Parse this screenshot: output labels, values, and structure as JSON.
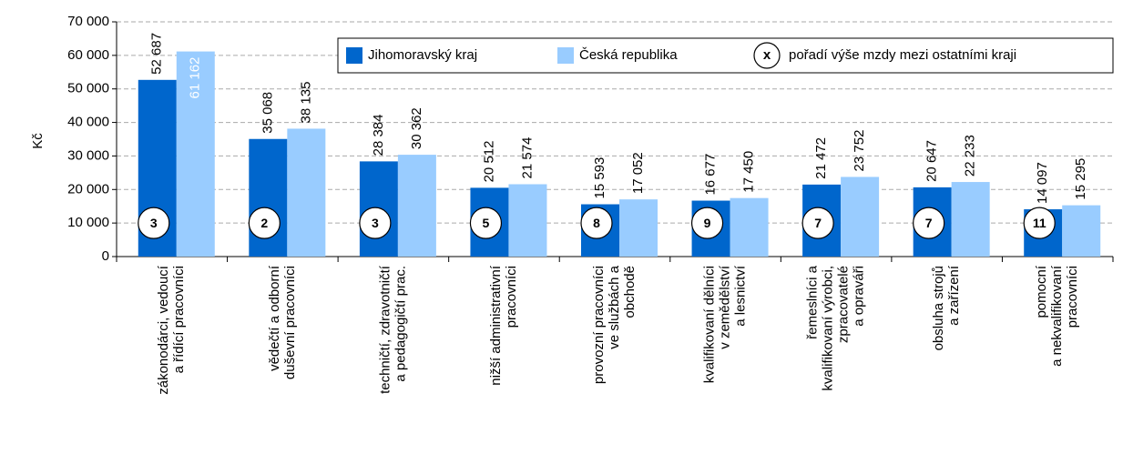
{
  "chart_data": {
    "type": "bar",
    "y_label": "Kč",
    "categories": [
      [
        "zákonodárci, vedoucí",
        "a řídící pracovníci"
      ],
      [
        "vědečtí a odborní",
        "duševní pracovníci"
      ],
      [
        "techničtí, zdravotničtí",
        "a pedagogičtí prac."
      ],
      [
        "nižší administrativní",
        "pracovníci"
      ],
      [
        "provozní pracovníci",
        "ve službách a",
        "obchodě"
      ],
      [
        "kvalifikovaní dělníci",
        "v zemědělství",
        "a lesnictví"
      ],
      [
        "řemeslníci a",
        "kvalifikovaní výrobci,",
        "zpracovatelé",
        "a opraváři"
      ],
      [
        "obsluha strojů",
        "a zařízení"
      ],
      [
        "pomocní",
        "a nekvalifikovaní",
        "pracovníci"
      ]
    ],
    "series": [
      {
        "name": "Jihomoravský kraj",
        "color": "#0066cc",
        "values": [
          52687,
          35068,
          28384,
          20512,
          15593,
          16677,
          21472,
          20647,
          14097
        ],
        "value_labels": [
          "52 687",
          "35 068",
          "28 384",
          "20 512",
          "15 593",
          "16 677",
          "21 472",
          "20 647",
          "14 097"
        ]
      },
      {
        "name": "Česká republika",
        "color": "#99ccff",
        "values": [
          61162,
          38135,
          30362,
          21574,
          17052,
          17450,
          23752,
          22233,
          15295
        ],
        "value_labels": [
          "61 162",
          "38 135",
          "30 362",
          "21 574",
          "17 052",
          "17 450",
          "23 752",
          "22 233",
          "15 295"
        ]
      }
    ],
    "ranks": [
      3,
      2,
      3,
      5,
      8,
      9,
      7,
      7,
      11
    ],
    "rank_legend": {
      "symbol": "x",
      "label": "pořadí výše mzdy mezi ostatními kraji"
    },
    "ylim": [
      0,
      70000
    ],
    "yticks": [
      0,
      {
        "value": 10000,
        "label": "10 000"
      },
      {
        "value": 20000,
        "label": "20 000"
      },
      {
        "value": 30000,
        "label": "30 000"
      },
      {
        "value": 40000,
        "label": "40 000"
      },
      {
        "value": 50000,
        "label": "50 000"
      },
      {
        "value": 60000,
        "label": "60 000"
      },
      {
        "value": 70000,
        "label": "70 000"
      }
    ],
    "grid": true
  }
}
